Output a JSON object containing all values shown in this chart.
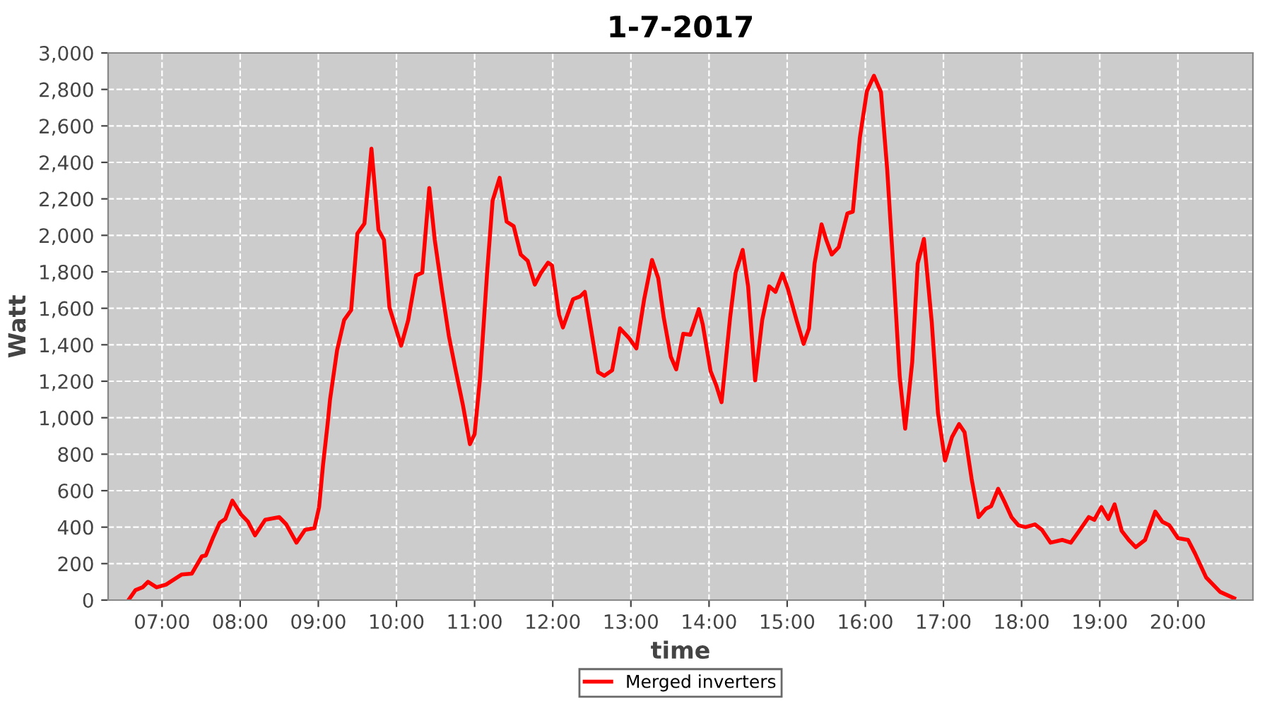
{
  "chart_data": {
    "type": "line",
    "title": "1-7-2017",
    "xlabel": "time",
    "ylabel": "Watt",
    "xlim": [
      6.31,
      20.96
    ],
    "ylim": [
      0,
      3000
    ],
    "xticks": [
      {
        "value": 7,
        "label": "07:00"
      },
      {
        "value": 8,
        "label": "08:00"
      },
      {
        "value": 9,
        "label": "09:00"
      },
      {
        "value": 10,
        "label": "10:00"
      },
      {
        "value": 11,
        "label": "11:00"
      },
      {
        "value": 12,
        "label": "12:00"
      },
      {
        "value": 13,
        "label": "13:00"
      },
      {
        "value": 14,
        "label": "14:00"
      },
      {
        "value": 15,
        "label": "15:00"
      },
      {
        "value": 16,
        "label": "16:00"
      },
      {
        "value": 17,
        "label": "17:00"
      },
      {
        "value": 18,
        "label": "18:00"
      },
      {
        "value": 19,
        "label": "19:00"
      },
      {
        "value": 20,
        "label": "20:00"
      }
    ],
    "yticks": [
      0,
      200,
      400,
      600,
      800,
      {
        "value": 1000,
        "label": "1,000"
      },
      {
        "value": 1200,
        "label": "1,200"
      },
      {
        "value": 1400,
        "label": "1,400"
      },
      {
        "value": 1600,
        "label": "1,600"
      },
      {
        "value": 1800,
        "label": "1,800"
      },
      {
        "value": 2000,
        "label": "2,000"
      },
      {
        "value": 2200,
        "label": "2,200"
      },
      {
        "value": 2400,
        "label": "2,400"
      },
      {
        "value": 2600,
        "label": "2,600"
      },
      {
        "value": 2800,
        "label": "2,800"
      },
      {
        "value": 3000,
        "label": "3,000"
      }
    ],
    "grid": true,
    "legend": "bottom",
    "marker": "none",
    "line_style": "solid",
    "series": [
      {
        "name": "Merged inverters",
        "color": "#ff0000",
        "x": [
          6.57,
          6.66,
          6.75,
          6.82,
          6.93,
          7.05,
          7.25,
          7.38,
          7.51,
          7.56,
          7.65,
          7.74,
          7.81,
          7.9,
          8.01,
          8.1,
          8.19,
          8.32,
          8.5,
          8.59,
          8.72,
          8.83,
          8.95,
          9.01,
          9.06,
          9.12,
          9.15,
          9.24,
          9.33,
          9.42,
          9.5,
          9.59,
          9.68,
          9.77,
          9.84,
          9.91,
          10.06,
          10.15,
          10.25,
          10.33,
          10.42,
          10.49,
          10.58,
          10.67,
          10.76,
          10.85,
          10.94,
          11.0,
          11.07,
          11.16,
          11.23,
          11.32,
          11.41,
          11.5,
          11.59,
          11.68,
          11.77,
          11.85,
          11.94,
          11.99,
          12.08,
          12.13,
          12.26,
          12.35,
          12.41,
          12.48,
          12.58,
          12.66,
          12.76,
          12.86,
          12.98,
          13.07,
          13.17,
          13.27,
          13.35,
          13.42,
          13.51,
          13.58,
          13.67,
          13.76,
          13.87,
          13.92,
          14.02,
          14.09,
          14.16,
          14.27,
          14.34,
          14.43,
          14.5,
          14.59,
          14.68,
          14.77,
          14.85,
          14.94,
          15.01,
          15.12,
          15.21,
          15.28,
          15.35,
          15.44,
          15.5,
          15.57,
          15.66,
          15.77,
          15.84,
          15.93,
          16.02,
          16.11,
          16.2,
          16.28,
          16.35,
          16.44,
          16.51,
          16.6,
          16.67,
          16.75,
          16.85,
          16.93,
          17.02,
          17.11,
          17.2,
          17.27,
          17.36,
          17.45,
          17.54,
          17.61,
          17.7,
          17.78,
          17.87,
          17.96,
          18.05,
          18.17,
          18.26,
          18.37,
          18.52,
          18.63,
          18.73,
          18.86,
          18.93,
          19.02,
          19.11,
          19.19,
          19.28,
          19.37,
          19.46,
          19.58,
          19.71,
          19.8,
          19.89,
          20.0,
          20.13,
          20.22,
          20.36,
          20.54,
          20.72
        ],
        "values": [
          0,
          55,
          70,
          100,
          70,
          85,
          140,
          145,
          240,
          245,
          340,
          425,
          445,
          545,
          470,
          430,
          355,
          440,
          455,
          415,
          315,
          385,
          395,
          510,
          740,
          970,
          1100,
          1370,
          1535,
          1590,
          2010,
          2065,
          2475,
          2030,
          1975,
          1605,
          1395,
          1535,
          1780,
          1795,
          2260,
          1975,
          1705,
          1450,
          1255,
          1070,
          855,
          910,
          1220,
          1795,
          2190,
          2315,
          2075,
          2050,
          1895,
          1860,
          1730,
          1795,
          1850,
          1835,
          1565,
          1495,
          1650,
          1665,
          1690,
          1510,
          1250,
          1230,
          1260,
          1490,
          1435,
          1380,
          1650,
          1865,
          1765,
          1550,
          1335,
          1265,
          1460,
          1455,
          1595,
          1510,
          1255,
          1180,
          1085,
          1550,
          1795,
          1920,
          1720,
          1205,
          1535,
          1720,
          1690,
          1790,
          1705,
          1535,
          1405,
          1490,
          1845,
          2060,
          1975,
          1895,
          1935,
          2120,
          2130,
          2535,
          2790,
          2875,
          2785,
          2360,
          1880,
          1225,
          940,
          1305,
          1845,
          1980,
          1525,
          1025,
          765,
          895,
          965,
          920,
          665,
          455,
          500,
          515,
          610,
          540,
          455,
          410,
          400,
          415,
          385,
          315,
          330,
          315,
          375,
          455,
          440,
          510,
          445,
          525,
          380,
          330,
          290,
          330,
          485,
          430,
          410,
          340,
          330,
          255,
          125,
          45,
          10
        ]
      }
    ]
  }
}
